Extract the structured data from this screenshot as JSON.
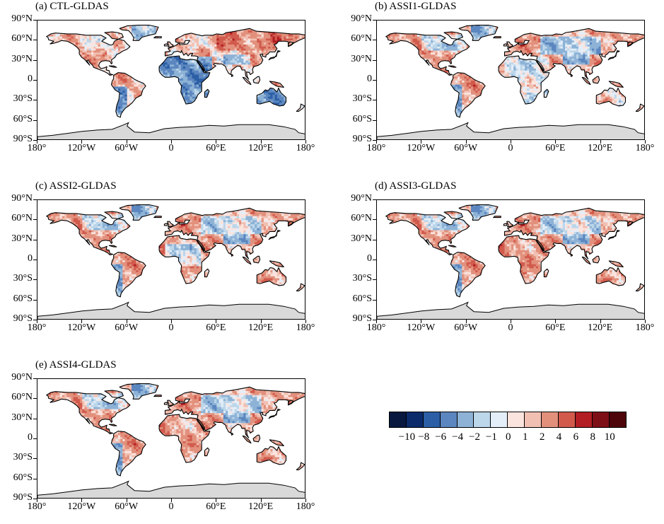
{
  "panels": [
    {
      "id": "a",
      "title": "(a)  CTL-GLDAS",
      "bias": "ctl"
    },
    {
      "id": "b",
      "title": "(b)  ASSI1-GLDAS",
      "bias": "a1"
    },
    {
      "id": "c",
      "title": "(c)  ASSI2-GLDAS",
      "bias": "a2"
    },
    {
      "id": "d",
      "title": "(d)  ASSI3-GLDAS",
      "bias": "a3"
    },
    {
      "id": "e",
      "title": "(e)  ASSI4-GLDAS",
      "bias": "a4"
    }
  ],
  "lat_labels": [
    "90°N",
    "60°N",
    "30°N",
    "0",
    "30°S",
    "60°S",
    "90°S"
  ],
  "lon_labels": [
    "180°",
    "120°W",
    "60°W",
    "0",
    "60°E",
    "120°E",
    "180°"
  ],
  "colorbar": {
    "labels": [
      "−10",
      "−8",
      "−6",
      "−4",
      "−2",
      "−1",
      "0",
      "1",
      "2",
      "4",
      "6",
      "8",
      "10"
    ],
    "colors": [
      "#08183f",
      "#0b2b6b",
      "#2c5fa6",
      "#5b86bf",
      "#8db2d6",
      "#bcd6ea",
      "#e3eef8",
      "#fbe3de",
      "#f1c0b2",
      "#e2907c",
      "#d15a4c",
      "#b21e23",
      "#7d0f16",
      "#4d0509"
    ]
  },
  "colors": {
    "antarctica": "#d9d9d9",
    "ocean": "#ffffff",
    "coast": "#000000"
  }
}
